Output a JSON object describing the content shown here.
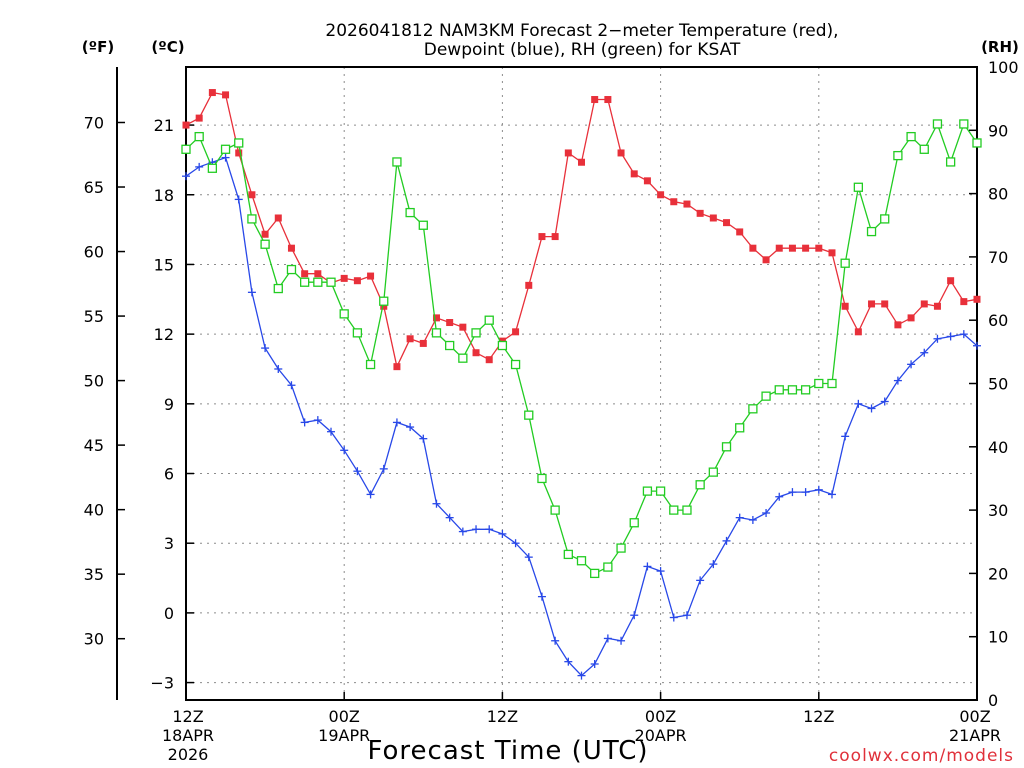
{
  "chart_data": {
    "type": "line",
    "title_line1": "2026041812 NAM3KM Forecast 2−meter Temperature (red),",
    "title_line2": "Dewpoint (blue), RH (green) for KSAT",
    "xlabel": "Forecast Time (UTC)",
    "credit": "coolwx.com/models",
    "units": {
      "fahrenheit": "(ºF)",
      "celsius": "(ºC)",
      "rh": "(RH)"
    },
    "x_range_hours": [
      0,
      60
    ],
    "celsius_range": [
      -3.75,
      23.5
    ],
    "rh_range": [
      0,
      100
    ],
    "celsius_ticks": [
      "21",
      "18",
      "15",
      "12",
      "9",
      "6",
      "3",
      "0",
      "−3"
    ],
    "fahrenheit_ticks": [
      "70",
      "65",
      "60",
      "55",
      "50",
      "45",
      "40",
      "35",
      "30"
    ],
    "rh_ticks": [
      "100",
      "90",
      "80",
      "70",
      "60",
      "50",
      "40",
      "30",
      "20",
      "10",
      "0"
    ],
    "x_tick_labels": [
      {
        "hour": 0,
        "line1": "12Z",
        "line2": "18APR",
        "line3": "2026"
      },
      {
        "hour": 12,
        "line1": "00Z",
        "line2": "19APR",
        "line3": ""
      },
      {
        "hour": 24,
        "line1": "12Z",
        "line2": "",
        "line3": ""
      },
      {
        "hour": 36,
        "line1": "00Z",
        "line2": "20APR",
        "line3": ""
      },
      {
        "hour": 48,
        "line1": "12Z",
        "line2": "",
        "line3": ""
      },
      {
        "hour": 60,
        "line1": "00Z",
        "line2": "21APR",
        "line3": ""
      }
    ],
    "series": [
      {
        "name": "Temperature",
        "units": "degC",
        "color": "#e8303a",
        "marker": "filled-square",
        "x": [
          0,
          1,
          2,
          3,
          4,
          5,
          6,
          7,
          8,
          9,
          10,
          11,
          12,
          13,
          14,
          15,
          16,
          17,
          18,
          19,
          20,
          21,
          22,
          23,
          24,
          25,
          26,
          27,
          28,
          29,
          30,
          31,
          32,
          33,
          34,
          35,
          36,
          37,
          38,
          39,
          40,
          41,
          42,
          43,
          44,
          45,
          46,
          47,
          48,
          49,
          50,
          51,
          52,
          53,
          54,
          55,
          56,
          57,
          58,
          59,
          60
        ],
        "values": [
          21.0,
          21.3,
          22.4,
          22.3,
          19.8,
          18.0,
          16.3,
          17.0,
          15.7,
          14.6,
          14.6,
          14.2,
          14.4,
          14.3,
          14.5,
          13.2,
          10.6,
          11.8,
          11.6,
          12.7,
          12.5,
          12.3,
          11.2,
          10.9,
          11.7,
          12.1,
          14.1,
          16.2,
          16.2,
          19.8,
          19.4,
          22.1,
          22.1,
          19.8,
          18.9,
          18.6,
          18.0,
          17.7,
          17.6,
          17.2,
          17.0,
          16.8,
          16.4,
          15.7,
          15.2,
          15.7,
          15.7,
          15.7,
          15.7,
          15.5,
          13.2,
          12.1,
          13.3,
          13.3,
          12.4,
          12.7,
          13.3,
          13.2,
          14.3,
          13.4,
          13.5
        ]
      },
      {
        "name": "Dewpoint",
        "units": "degC",
        "color": "#2848e8",
        "marker": "plus",
        "x": [
          0,
          1,
          2,
          3,
          4,
          5,
          6,
          7,
          8,
          9,
          10,
          11,
          12,
          13,
          14,
          15,
          16,
          17,
          18,
          19,
          20,
          21,
          22,
          23,
          24,
          25,
          26,
          27,
          28,
          29,
          30,
          31,
          32,
          33,
          34,
          35,
          36,
          37,
          38,
          39,
          40,
          41,
          42,
          43,
          44,
          45,
          46,
          47,
          48,
          49,
          50,
          51,
          52,
          53,
          54,
          55,
          56,
          57,
          58,
          59,
          60
        ],
        "values": [
          18.8,
          19.2,
          19.4,
          19.6,
          17.8,
          13.8,
          11.4,
          10.5,
          9.8,
          8.2,
          8.3,
          7.8,
          7.0,
          6.1,
          5.1,
          6.2,
          8.2,
          8.0,
          7.5,
          4.7,
          4.1,
          3.5,
          3.6,
          3.6,
          3.4,
          3.0,
          2.4,
          0.7,
          -1.2,
          -2.1,
          -2.7,
          -2.2,
          -1.1,
          -1.2,
          -0.1,
          2.0,
          1.8,
          -0.2,
          -0.1,
          1.4,
          2.1,
          3.1,
          4.1,
          4.0,
          4.3,
          5.0,
          5.2,
          5.2,
          5.3,
          5.1,
          7.6,
          9.0,
          8.8,
          9.1,
          10.0,
          10.7,
          11.2,
          11.8,
          11.9,
          12.0,
          11.5
        ]
      },
      {
        "name": "RH",
        "units": "percent",
        "color": "#22cc22",
        "marker": "open-square",
        "x": [
          0,
          1,
          2,
          3,
          4,
          5,
          6,
          7,
          8,
          9,
          10,
          11,
          12,
          13,
          14,
          15,
          16,
          17,
          18,
          19,
          20,
          21,
          22,
          23,
          24,
          25,
          26,
          27,
          28,
          29,
          30,
          31,
          32,
          33,
          34,
          35,
          36,
          37,
          38,
          39,
          40,
          41,
          42,
          43,
          44,
          45,
          46,
          47,
          48,
          49,
          50,
          51,
          52,
          53,
          54,
          55,
          56,
          57,
          58,
          59,
          60
        ],
        "values": [
          87,
          89,
          84,
          87,
          88,
          76,
          72,
          65,
          68,
          66,
          66,
          66,
          61,
          58,
          53,
          63,
          85,
          77,
          75,
          58,
          56,
          54,
          58,
          60,
          56,
          53,
          45,
          35,
          30,
          23,
          22,
          20,
          21,
          24,
          28,
          33,
          33,
          30,
          30,
          34,
          36,
          40,
          43,
          46,
          48,
          49,
          49,
          49,
          50,
          50,
          69,
          81,
          74,
          76,
          86,
          89,
          87,
          91,
          85,
          91,
          88
        ]
      }
    ]
  }
}
